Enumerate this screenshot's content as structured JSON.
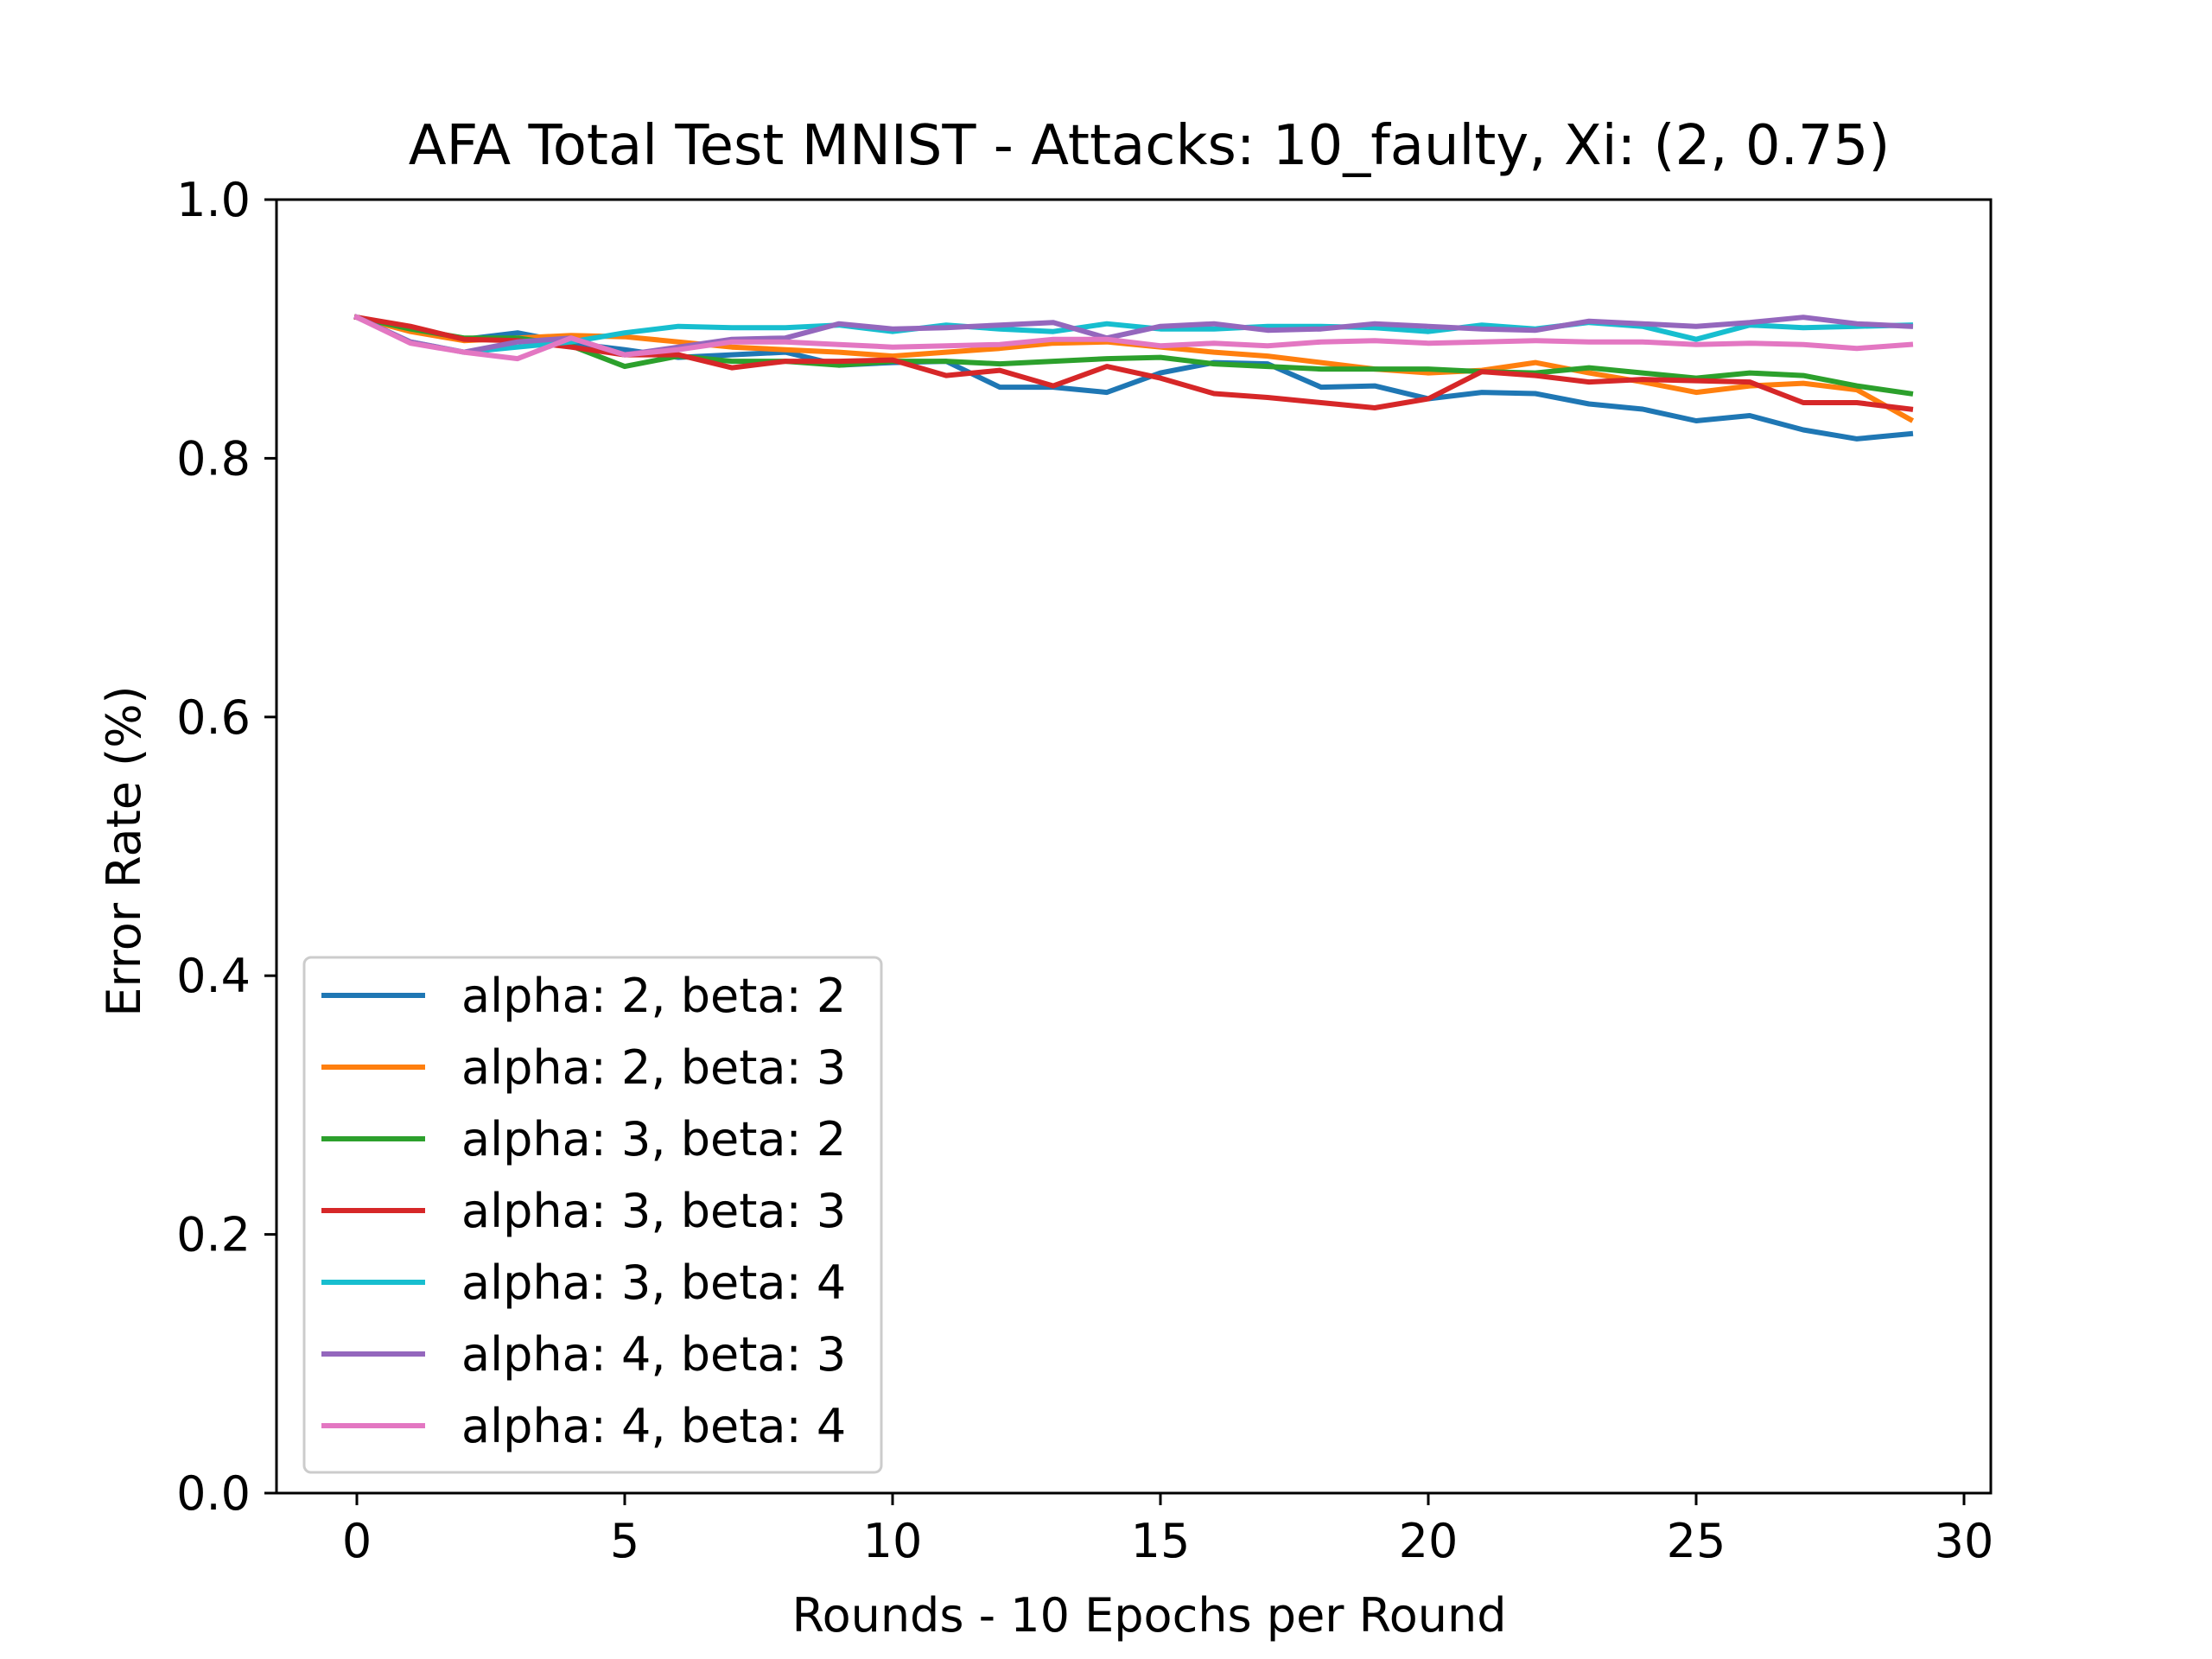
{
  "chart_data": {
    "type": "line",
    "title": "AFA Total Test MNIST - Attacks: 10_faulty, Xi: (2, 0.75)",
    "xlabel": "Rounds - 10 Epochs per Round",
    "ylabel": "Error Rate (%)",
    "xlim": [
      -1.5,
      30.5
    ],
    "ylim": [
      0.0,
      1.0
    ],
    "xticks": [
      0,
      5,
      10,
      15,
      20,
      25,
      30
    ],
    "yticks": [
      0.0,
      0.2,
      0.4,
      0.6,
      0.8,
      1.0
    ],
    "xtick_labels": [
      "0",
      "5",
      "10",
      "15",
      "20",
      "25",
      "30"
    ],
    "ytick_labels": [
      "0.0",
      "0.2",
      "0.4",
      "0.6",
      "0.8",
      "1.0"
    ],
    "grid": false,
    "legend_position": "lower-left",
    "x": [
      0,
      1,
      2,
      3,
      4,
      5,
      6,
      7,
      8,
      9,
      10,
      11,
      12,
      13,
      14,
      15,
      16,
      17,
      18,
      19,
      20,
      21,
      22,
      23,
      24,
      25,
      26,
      27,
      28,
      29
    ],
    "series": [
      {
        "name": "alpha: 2, beta: 2",
        "color": "#1f77b4",
        "values": [
          0.909,
          0.9,
          0.892,
          0.897,
          0.889,
          0.884,
          0.878,
          0.88,
          0.882,
          0.872,
          0.874,
          0.875,
          0.855,
          0.855,
          0.851,
          0.866,
          0.874,
          0.873,
          0.855,
          0.856,
          0.846,
          0.851,
          0.85,
          0.842,
          0.838,
          0.829,
          0.833,
          0.822,
          0.815,
          0.819
        ]
      },
      {
        "name": "alpha: 2, beta: 3",
        "color": "#ff7f0e",
        "values": [
          0.909,
          0.898,
          0.891,
          0.893,
          0.895,
          0.894,
          0.89,
          0.886,
          0.884,
          0.882,
          0.879,
          0.882,
          0.885,
          0.889,
          0.89,
          0.886,
          0.882,
          0.879,
          0.874,
          0.869,
          0.866,
          0.868,
          0.874,
          0.866,
          0.859,
          0.851,
          0.856,
          0.858,
          0.853,
          0.83
        ]
      },
      {
        "name": "alpha: 3, beta: 2",
        "color": "#2ca02c",
        "values": [
          0.909,
          0.9,
          0.893,
          0.893,
          0.887,
          0.871,
          0.879,
          0.875,
          0.875,
          0.872,
          0.875,
          0.875,
          0.873,
          0.875,
          0.877,
          0.878,
          0.873,
          0.871,
          0.869,
          0.869,
          0.869,
          0.867,
          0.866,
          0.87,
          0.866,
          0.862,
          0.866,
          0.864,
          0.856,
          0.85
        ]
      },
      {
        "name": "alpha: 3, beta: 3",
        "color": "#d62728",
        "values": [
          0.909,
          0.902,
          0.892,
          0.891,
          0.886,
          0.88,
          0.88,
          0.87,
          0.875,
          0.875,
          0.876,
          0.864,
          0.868,
          0.856,
          0.871,
          0.862,
          0.85,
          0.847,
          0.843,
          0.839,
          0.846,
          0.867,
          0.864,
          0.859,
          0.861,
          0.86,
          0.859,
          0.843,
          0.843,
          0.838
        ]
      },
      {
        "name": "alpha: 3, beta: 4",
        "color": "#17becf",
        "values": [
          0.909,
          0.89,
          0.882,
          0.886,
          0.89,
          0.897,
          0.902,
          0.901,
          0.901,
          0.903,
          0.898,
          0.903,
          0.9,
          0.898,
          0.904,
          0.9,
          0.9,
          0.902,
          0.902,
          0.901,
          0.898,
          0.903,
          0.9,
          0.905,
          0.902,
          0.892,
          0.903,
          0.901,
          0.902,
          0.903
        ]
      },
      {
        "name": "alpha: 4, beta: 3",
        "color": "#9467bd",
        "values": [
          0.909,
          0.89,
          0.882,
          0.89,
          0.893,
          0.88,
          0.886,
          0.892,
          0.893,
          0.904,
          0.9,
          0.901,
          0.903,
          0.905,
          0.893,
          0.902,
          0.904,
          0.899,
          0.9,
          0.904,
          0.902,
          0.9,
          0.899,
          0.906,
          0.904,
          0.902,
          0.905,
          0.909,
          0.904,
          0.902
        ]
      },
      {
        "name": "alpha: 4, beta: 4",
        "color": "#e377c2",
        "values": [
          0.909,
          0.889,
          0.882,
          0.877,
          0.893,
          0.88,
          0.884,
          0.89,
          0.89,
          0.888,
          0.886,
          0.887,
          0.888,
          0.892,
          0.892,
          0.887,
          0.889,
          0.887,
          0.89,
          0.891,
          0.889,
          0.89,
          0.891,
          0.89,
          0.89,
          0.888,
          0.889,
          0.888,
          0.885,
          0.888
        ]
      }
    ]
  }
}
